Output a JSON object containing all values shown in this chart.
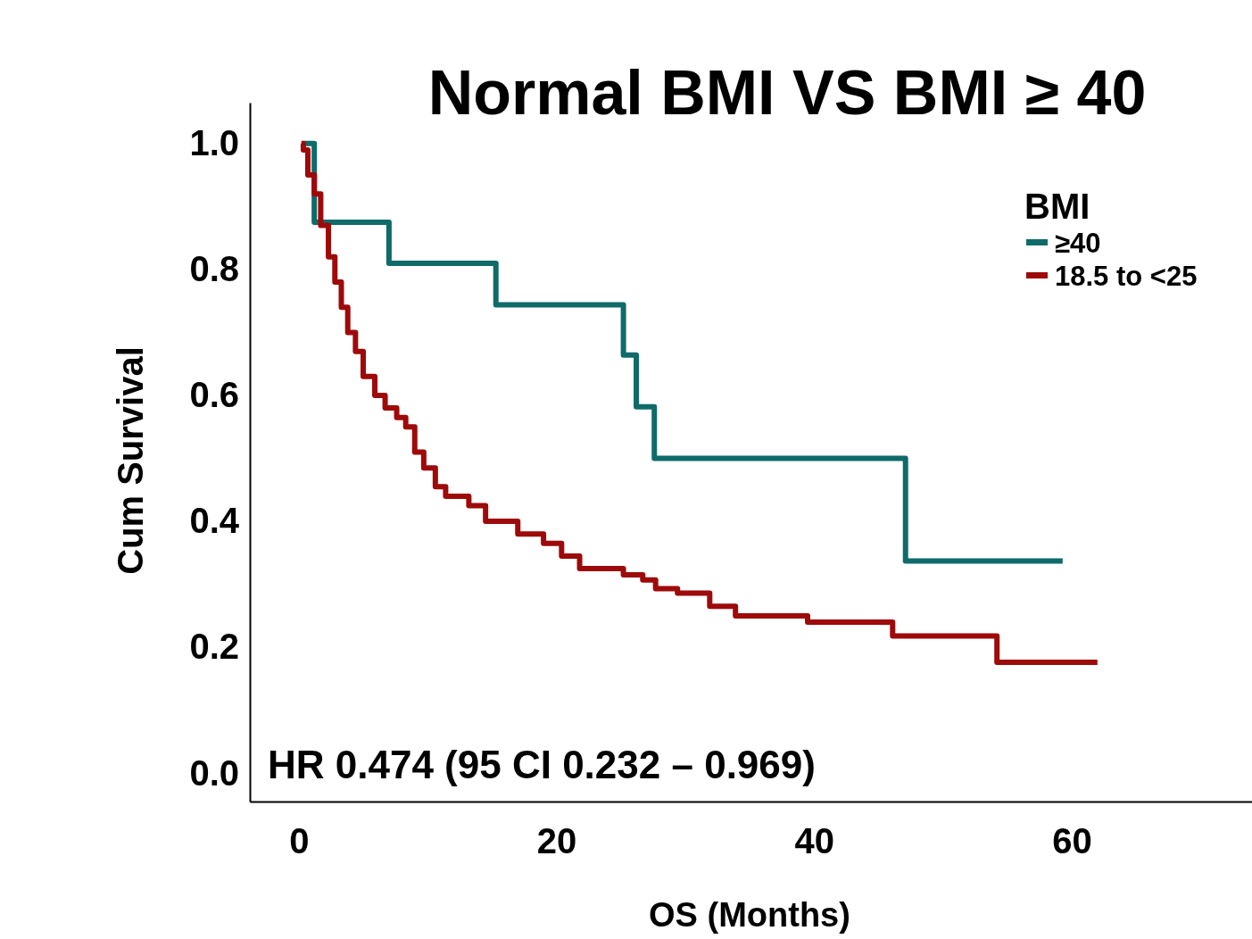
{
  "chart_data": {
    "type": "step",
    "title": "Normal BMI VS BMI ≥ 40",
    "xlabel": "OS (Months)",
    "ylabel": "Cum Survival",
    "legend_title": "BMI",
    "xlim": [
      -3.8,
      74
    ],
    "xticks": [
      0,
      20,
      40,
      60
    ],
    "ylim": [
      -0.045,
      1.065
    ],
    "yticks": [
      {
        "value": 0,
        "label": "0.0"
      },
      0.2,
      0.4,
      0.6,
      0.8,
      {
        "value": 1,
        "label": "1.0"
      }
    ],
    "legend": "top right",
    "grid": false,
    "marker": "none",
    "line_style": "solid",
    "series": [
      {
        "name": "≥40",
        "color": "#0f6b69",
        "x": [
          0.35,
          1.2,
          7.0,
          15.3,
          25.2,
          26.2,
          27.6,
          47.1,
          59.3
        ],
        "values": [
          1.0,
          0.875,
          0.81,
          0.744,
          0.664,
          0.582,
          0.5,
          0.337,
          0.337
        ]
      },
      {
        "name": "18.5 to <25",
        "color": "#9e0a0a",
        "x": [
          0.2,
          0.35,
          0.7,
          1.2,
          1.7,
          2.3,
          2.8,
          3.3,
          3.8,
          4.4,
          5.0,
          5.9,
          6.7,
          7.6,
          8.3,
          9.0,
          9.7,
          10.6,
          11.4,
          13.2,
          14.5,
          17.0,
          19.0,
          20.4,
          21.8,
          25.2,
          26.7,
          27.7,
          29.4,
          31.9,
          33.9,
          39.5,
          46.1,
          54.2,
          62.0
        ],
        "values": [
          1.0,
          0.99,
          0.95,
          0.92,
          0.87,
          0.82,
          0.78,
          0.74,
          0.7,
          0.67,
          0.63,
          0.6,
          0.58,
          0.565,
          0.55,
          0.51,
          0.485,
          0.455,
          0.44,
          0.425,
          0.4,
          0.38,
          0.365,
          0.345,
          0.325,
          0.315,
          0.307,
          0.293,
          0.286,
          0.265,
          0.25,
          0.24,
          0.218,
          0.176,
          0.176
        ]
      }
    ],
    "annotations": [
      "HR 0.474 (95 CI 0.232 – 0.969)"
    ]
  }
}
